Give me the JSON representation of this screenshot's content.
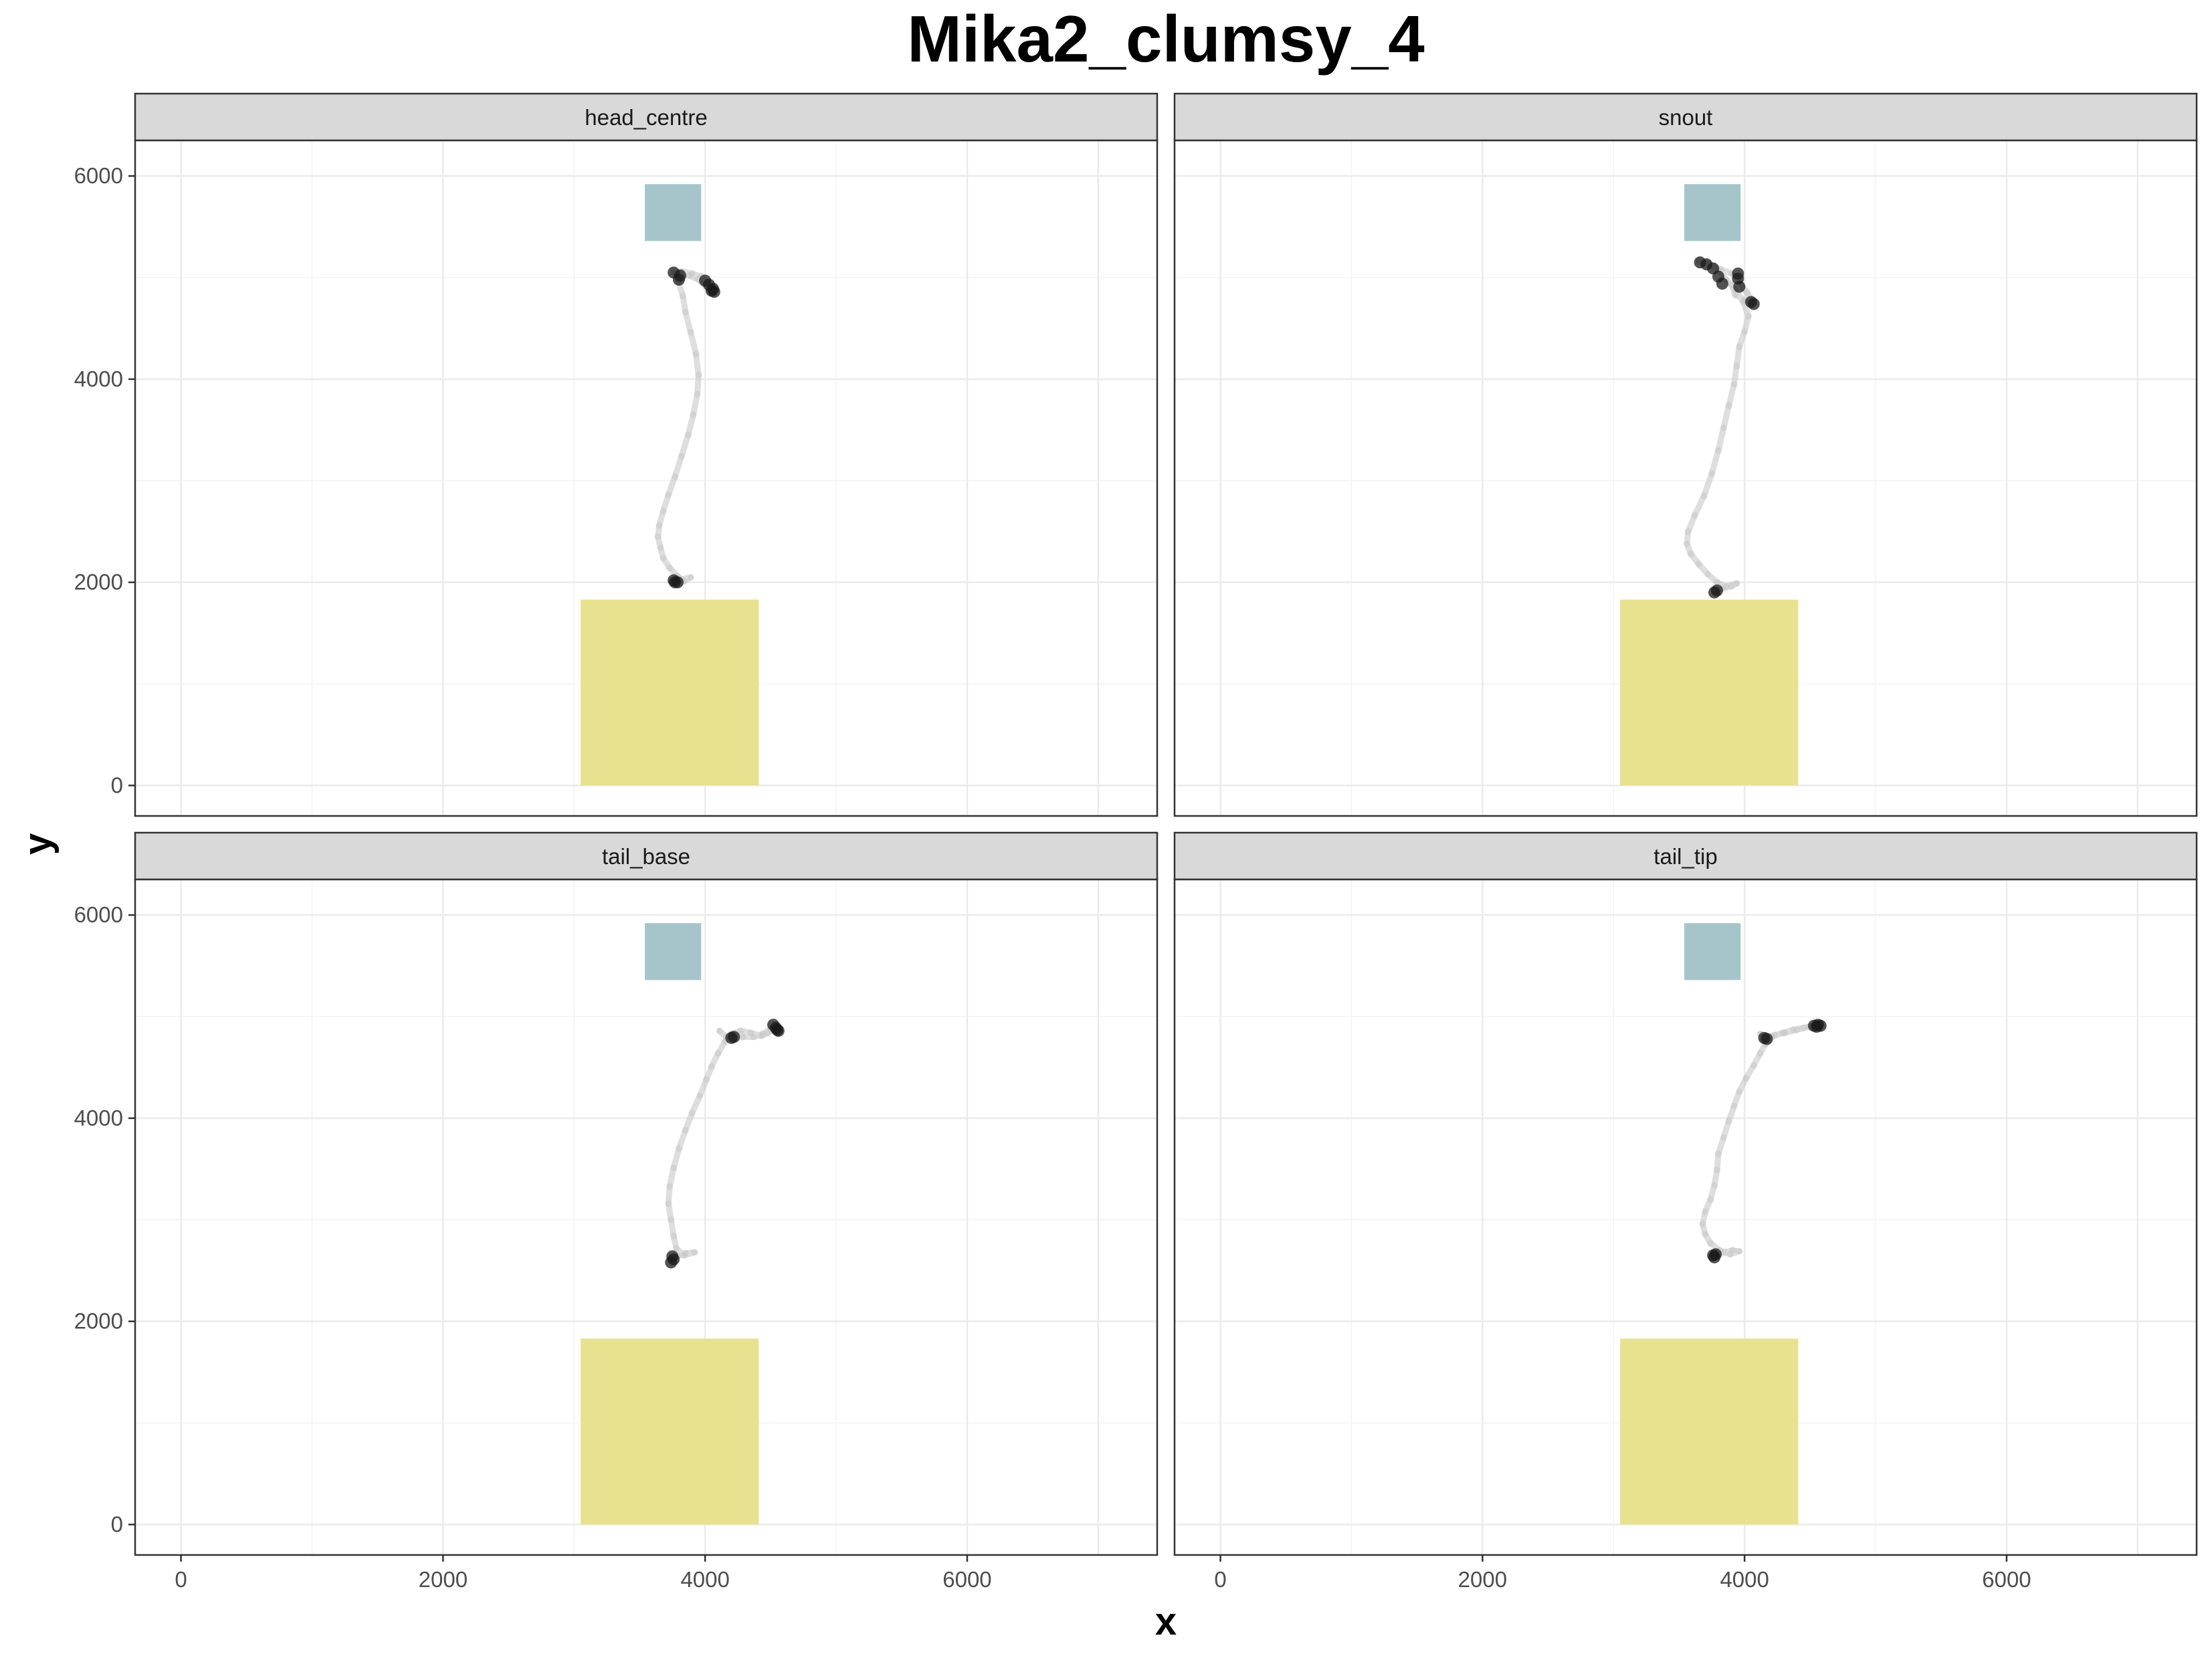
{
  "chart_data": {
    "type": "scatter",
    "title": "Mika2_clumsy_4",
    "xlabel": "x",
    "ylabel": "y",
    "xlim": [
      -350,
      7450
    ],
    "ylim": [
      -300,
      6350
    ],
    "x_ticks": [
      0,
      2000,
      4000,
      6000
    ],
    "y_ticks": [
      0,
      2000,
      4000,
      6000
    ],
    "grid": true,
    "colors": {
      "zone_blue": "#a6c5cb",
      "zone_yellow": "#e8e290",
      "path": "#c8c8c8",
      "point": "#1a1a1a",
      "strip_fill": "#d9d9d9",
      "grid": "#ebebeb"
    },
    "zones": [
      {
        "name": "blue zone",
        "x": [
          3540,
          3970
        ],
        "y": [
          5360,
          5920
        ],
        "color": "#a6c5cb"
      },
      {
        "name": "yellow zone",
        "x": [
          3050,
          4410
        ],
        "y": [
          0,
          1830
        ],
        "color": "#e8e290"
      }
    ],
    "panels": [
      {
        "strip": "head_centre",
        "path": [
          [
            3770,
            2010
          ],
          [
            3820,
            2030
          ],
          [
            3890,
            2050
          ],
          [
            3840,
            2010
          ],
          [
            3790,
            2060
          ],
          [
            3730,
            2140
          ],
          [
            3680,
            2240
          ],
          [
            3660,
            2340
          ],
          [
            3640,
            2450
          ],
          [
            3650,
            2560
          ],
          [
            3680,
            2700
          ],
          [
            3720,
            2860
          ],
          [
            3770,
            3040
          ],
          [
            3820,
            3240
          ],
          [
            3870,
            3450
          ],
          [
            3910,
            3650
          ],
          [
            3940,
            3850
          ],
          [
            3950,
            4040
          ],
          [
            3930,
            4250
          ],
          [
            3890,
            4460
          ],
          [
            3850,
            4660
          ],
          [
            3830,
            4820
          ],
          [
            3800,
            4950
          ],
          [
            3760,
            5050
          ],
          [
            3820,
            5060
          ],
          [
            3900,
            5040
          ],
          [
            3970,
            5010
          ],
          [
            4010,
            4960
          ],
          [
            4040,
            4910
          ],
          [
            4060,
            4860
          ],
          [
            4030,
            4880
          ],
          [
            3950,
            4980
          ],
          [
            3880,
            5020
          ],
          [
            3810,
            5030
          ],
          [
            3790,
            4990
          ]
        ],
        "points": [
          [
            3770,
            2000
          ],
          [
            3760,
            2020
          ],
          [
            3790,
            2000
          ],
          [
            3810,
            5020
          ],
          [
            3800,
            4980
          ],
          [
            3760,
            5050
          ],
          [
            4000,
            4970
          ],
          [
            4030,
            4930
          ],
          [
            4060,
            4890
          ],
          [
            4070,
            4860
          ],
          [
            4050,
            4870
          ]
        ]
      },
      {
        "strip": "snout",
        "path": [
          [
            3780,
            1920
          ],
          [
            3830,
            1940
          ],
          [
            3900,
            1960
          ],
          [
            3940,
            1990
          ],
          [
            3860,
            1960
          ],
          [
            3790,
            2000
          ],
          [
            3720,
            2080
          ],
          [
            3650,
            2180
          ],
          [
            3590,
            2280
          ],
          [
            3560,
            2380
          ],
          [
            3570,
            2500
          ],
          [
            3620,
            2660
          ],
          [
            3690,
            2850
          ],
          [
            3750,
            3070
          ],
          [
            3800,
            3300
          ],
          [
            3840,
            3520
          ],
          [
            3880,
            3740
          ],
          [
            3920,
            3950
          ],
          [
            3940,
            4130
          ],
          [
            3960,
            4320
          ],
          [
            4000,
            4470
          ],
          [
            4030,
            4620
          ],
          [
            3990,
            4760
          ],
          [
            3930,
            4880
          ],
          [
            3860,
            4980
          ],
          [
            3800,
            5070
          ],
          [
            3720,
            5140
          ],
          [
            3650,
            5160
          ],
          [
            3730,
            5130
          ],
          [
            3820,
            5080
          ],
          [
            3900,
            5040
          ],
          [
            3950,
            4990
          ],
          [
            3970,
            4940
          ],
          [
            4020,
            4850
          ],
          [
            4060,
            4760
          ],
          [
            4000,
            4780
          ],
          [
            3930,
            4830
          ],
          [
            3900,
            4930
          ]
        ],
        "points": [
          [
            3770,
            1900
          ],
          [
            3790,
            1920
          ],
          [
            3660,
            5150
          ],
          [
            3710,
            5130
          ],
          [
            3760,
            5090
          ],
          [
            3800,
            5010
          ],
          [
            3830,
            4940
          ],
          [
            3950,
            5040
          ],
          [
            3950,
            4990
          ],
          [
            3960,
            4910
          ],
          [
            4050,
            4760
          ],
          [
            4070,
            4740
          ]
        ]
      },
      {
        "strip": "tail_base",
        "path": [
          [
            3740,
            2600
          ],
          [
            3790,
            2640
          ],
          [
            3850,
            2670
          ],
          [
            3920,
            2680
          ],
          [
            3840,
            2650
          ],
          [
            3780,
            2720
          ],
          [
            3760,
            2840
          ],
          [
            3740,
            3000
          ],
          [
            3720,
            3160
          ],
          [
            3730,
            3330
          ],
          [
            3760,
            3510
          ],
          [
            3800,
            3700
          ],
          [
            3850,
            3880
          ],
          [
            3900,
            4050
          ],
          [
            3960,
            4220
          ],
          [
            4010,
            4380
          ],
          [
            4050,
            4510
          ],
          [
            4100,
            4640
          ],
          [
            4150,
            4750
          ],
          [
            4200,
            4830
          ],
          [
            4270,
            4860
          ],
          [
            4350,
            4840
          ],
          [
            4430,
            4810
          ],
          [
            4480,
            4840
          ],
          [
            4520,
            4880
          ],
          [
            4540,
            4900
          ],
          [
            4500,
            4880
          ],
          [
            4440,
            4830
          ],
          [
            4370,
            4800
          ],
          [
            4290,
            4800
          ],
          [
            4230,
            4790
          ],
          [
            4160,
            4800
          ],
          [
            4110,
            4860
          ]
        ],
        "points": [
          [
            3740,
            2580
          ],
          [
            3760,
            2610
          ],
          [
            3750,
            2640
          ],
          [
            4200,
            4790
          ],
          [
            4220,
            4800
          ],
          [
            4520,
            4920
          ],
          [
            4540,
            4890
          ],
          [
            4560,
            4860
          ],
          [
            4550,
            4870
          ]
        ]
      },
      {
        "strip": "tail_tip",
        "path": [
          [
            3770,
            2640
          ],
          [
            3840,
            2680
          ],
          [
            3910,
            2700
          ],
          [
            3960,
            2690
          ],
          [
            3890,
            2660
          ],
          [
            3810,
            2700
          ],
          [
            3740,
            2770
          ],
          [
            3700,
            2860
          ],
          [
            3680,
            2960
          ],
          [
            3700,
            3080
          ],
          [
            3740,
            3200
          ],
          [
            3770,
            3340
          ],
          [
            3790,
            3490
          ],
          [
            3800,
            3650
          ],
          [
            3840,
            3810
          ],
          [
            3880,
            3970
          ],
          [
            3920,
            4120
          ],
          [
            3960,
            4260
          ],
          [
            4010,
            4390
          ],
          [
            4070,
            4520
          ],
          [
            4120,
            4640
          ],
          [
            4160,
            4730
          ],
          [
            4210,
            4800
          ],
          [
            4290,
            4840
          ],
          [
            4370,
            4870
          ],
          [
            4450,
            4890
          ],
          [
            4530,
            4910
          ],
          [
            4560,
            4920
          ],
          [
            4490,
            4900
          ],
          [
            4400,
            4870
          ],
          [
            4310,
            4840
          ],
          [
            4230,
            4820
          ],
          [
            4160,
            4790
          ],
          [
            4120,
            4830
          ]
        ],
        "points": [
          [
            3770,
            2630
          ],
          [
            3780,
            2660
          ],
          [
            3760,
            2650
          ],
          [
            4150,
            4790
          ],
          [
            4170,
            4780
          ],
          [
            4530,
            4910
          ],
          [
            4560,
            4920
          ],
          [
            4580,
            4910
          ],
          [
            4550,
            4900
          ]
        ]
      }
    ]
  }
}
